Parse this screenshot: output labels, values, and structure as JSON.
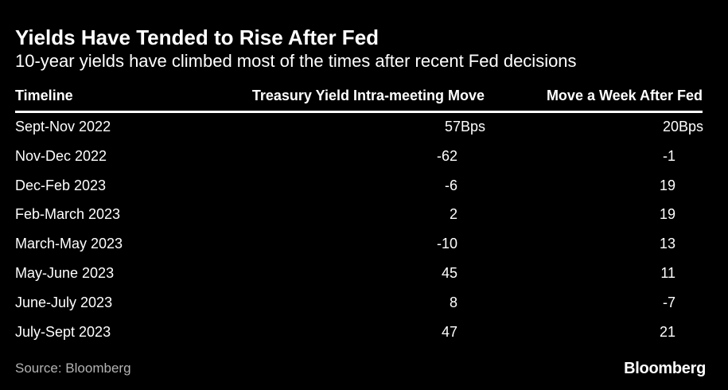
{
  "chart_data": {
    "type": "table",
    "title": "Yields Have Tended to Rise After Fed",
    "subtitle": "10-year yields have climbed most of the times after recent Fed decisions",
    "columns": [
      "Timeline",
      "Treasury Yield Intra-meeting Move",
      "Move a Week After Fed"
    ],
    "unit_suffix": "Bps",
    "rows": [
      {
        "timeline": "Sept-Nov 2022",
        "intra": "57",
        "week": "20"
      },
      {
        "timeline": "Nov-Dec 2022",
        "intra": "-62",
        "week": "-1"
      },
      {
        "timeline": "Dec-Feb 2023",
        "intra": "-6",
        "week": "19"
      },
      {
        "timeline": "Feb-March 2023",
        "intra": "2",
        "week": "19"
      },
      {
        "timeline": "March-May 2023",
        "intra": "-10",
        "week": "13"
      },
      {
        "timeline": "May-June 2023",
        "intra": "45",
        "week": "11"
      },
      {
        "timeline": "June-July 2023",
        "intra": "8",
        "week": "-7"
      },
      {
        "timeline": "July-Sept 2023",
        "intra": "47",
        "week": "21"
      }
    ]
  },
  "footer": {
    "source": "Source: Bloomberg",
    "logo": "Bloomberg"
  },
  "colors": {
    "background": "#000000",
    "text": "#ffffff",
    "source_text": "#b3b3b3"
  }
}
